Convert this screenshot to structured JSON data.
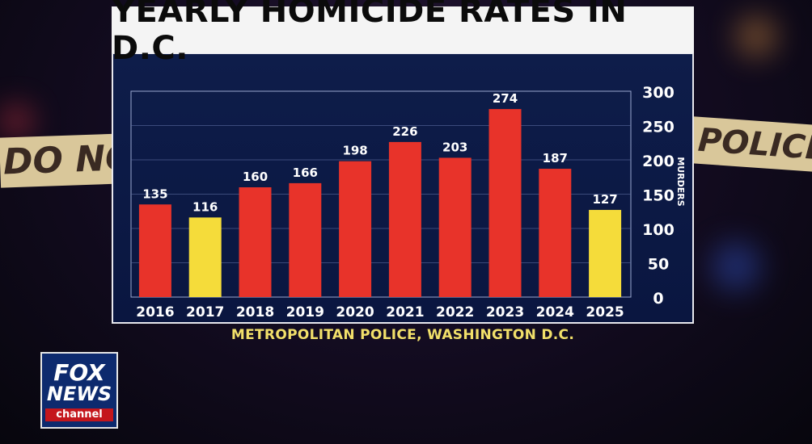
{
  "title": "YEARLY HOMICIDE RATES IN D.C.",
  "source": "METROPOLITAN POLICE, WASHINGTON D.C.",
  "tape": {
    "left": "DO NOT",
    "right": "POLICE LIN"
  },
  "logo": {
    "line1": "FOX",
    "line2": "NEWS",
    "line3": "channel"
  },
  "colors": {
    "default_bar": "#e8332a",
    "highlight_bar": "#f5dc3a",
    "panel": "#0e1d4a"
  },
  "chart_data": {
    "type": "bar",
    "title": "YEARLY HOMICIDE RATES IN D.C.",
    "ylabel": "MURDERS",
    "categories": [
      "2016",
      "2017",
      "2018",
      "2019",
      "2020",
      "2021",
      "2022",
      "2023",
      "2024",
      "2025"
    ],
    "values": [
      135,
      116,
      160,
      166,
      198,
      226,
      203,
      274,
      187,
      127
    ],
    "highlighted": [
      "2017",
      "2025"
    ],
    "ylim": [
      0,
      300
    ],
    "yticks": [
      0,
      50,
      100,
      150,
      200,
      250,
      300
    ],
    "grid": true,
    "y_axis_side": "right"
  }
}
